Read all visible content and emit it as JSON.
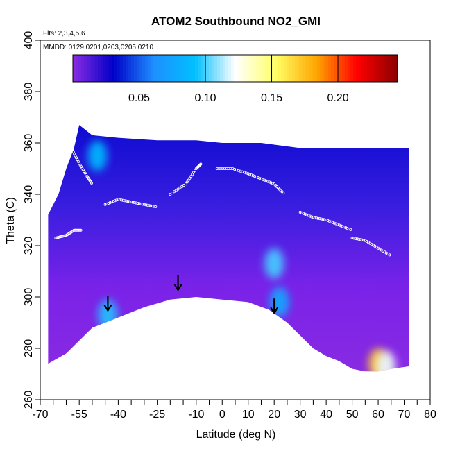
{
  "chart_data": {
    "type": "heatmap",
    "title": "ATOM2 Southbound NO2_GMI",
    "flights_label": "Flts: 2,3,4,5,6",
    "dates_label": "MMDD: 0129,0201,0203,0205,0210",
    "xlabel": "Latitude (deg N)",
    "ylabel": "Theta (C)",
    "xlim": [
      -70,
      80
    ],
    "ylim": [
      260,
      400
    ],
    "x_tick_labels": [
      "-70",
      "-55",
      "-40",
      "-25",
      "-10",
      "0",
      "10",
      "20",
      "30",
      "40",
      "50",
      "60",
      "70",
      "80"
    ],
    "x_tick_values": [
      -70,
      -55,
      -40,
      -25,
      -10,
      0,
      10,
      20,
      30,
      40,
      50,
      60,
      70,
      80
    ],
    "x_minor_ticks": [
      -65,
      -60,
      -50,
      -45,
      -35,
      -30,
      -20,
      -15,
      -5,
      5,
      15,
      25,
      35,
      45,
      55,
      65,
      75
    ],
    "y_tick_labels": [
      "260",
      "280",
      "300",
      "320",
      "340",
      "360",
      "380",
      "400"
    ],
    "y_tick_values": [
      260,
      280,
      300,
      320,
      340,
      360,
      380,
      400
    ],
    "colorbar": {
      "range": [
        0.0,
        0.245
      ],
      "tick_values": [
        0.05,
        0.1,
        0.15,
        0.2
      ],
      "tick_labels": [
        "0.05",
        "0.10",
        "0.15",
        "0.20"
      ],
      "colors": [
        "#8a2be2",
        "#0000c8",
        "#1e90ff",
        "#00bfff",
        "#ffffff",
        "#ffff66",
        "#ffa500",
        "#ff0000",
        "#8b0000"
      ]
    },
    "field": {
      "lat_range": [
        -67,
        72
      ],
      "domain_top": [
        [
          -67,
          332
        ],
        [
          -63,
          340
        ],
        [
          -60,
          350
        ],
        [
          -57,
          358
        ],
        [
          -55,
          367
        ],
        [
          -50,
          363
        ],
        [
          -40,
          362
        ],
        [
          -25,
          361
        ],
        [
          -10,
          361
        ],
        [
          0,
          360
        ],
        [
          15,
          360
        ],
        [
          30,
          358
        ],
        [
          40,
          358
        ],
        [
          50,
          358
        ],
        [
          60,
          358
        ],
        [
          65,
          358
        ],
        [
          72,
          358
        ]
      ],
      "domain_bottom": [
        [
          -67,
          274
        ],
        [
          -60,
          278
        ],
        [
          -55,
          283
        ],
        [
          -50,
          288
        ],
        [
          -45,
          290
        ],
        [
          -40,
          292
        ],
        [
          -30,
          296
        ],
        [
          -20,
          299
        ],
        [
          -10,
          300
        ],
        [
          0,
          299
        ],
        [
          10,
          298
        ],
        [
          18,
          295
        ],
        [
          25,
          290
        ],
        [
          30,
          285
        ],
        [
          35,
          280
        ],
        [
          40,
          277
        ],
        [
          45,
          275
        ],
        [
          50,
          272
        ],
        [
          55,
          271
        ],
        [
          60,
          271
        ],
        [
          65,
          272
        ],
        [
          72,
          273
        ]
      ],
      "features": [
        {
          "lat": -48,
          "theta": 355,
          "value": 0.09
        },
        {
          "lat": -44,
          "theta": 293,
          "value": 0.095
        },
        {
          "lat": 20,
          "theta": 313,
          "value": 0.1
        },
        {
          "lat": 22,
          "theta": 298,
          "value": 0.08
        },
        {
          "lat": 60,
          "theta": 274,
          "value": 0.17
        },
        {
          "lat": 63,
          "theta": 273,
          "value": 0.12
        }
      ]
    },
    "profiles": [
      {
        "lat": [
          -64,
          -60,
          -57,
          -54
        ],
        "theta": [
          323,
          324,
          326,
          326
        ]
      },
      {
        "lat": [
          -58,
          -55,
          -52,
          -50
        ],
        "theta": [
          358,
          352,
          347,
          344
        ]
      },
      {
        "lat": [
          -45,
          -40,
          -35,
          -30,
          -25
        ],
        "theta": [
          336,
          338,
          337,
          336,
          335
        ]
      },
      {
        "lat": [
          -20,
          -14,
          -10,
          -8
        ],
        "theta": [
          340,
          344,
          350,
          352
        ]
      },
      {
        "lat": [
          -2,
          4,
          10,
          15,
          20,
          24
        ],
        "theta": [
          350,
          350,
          348,
          346,
          344,
          340
        ]
      },
      {
        "lat": [
          30,
          35,
          40,
          45,
          50
        ],
        "theta": [
          333,
          331,
          330,
          328,
          326
        ]
      },
      {
        "lat": [
          50,
          55,
          60,
          65
        ],
        "theta": [
          323,
          322,
          319,
          316
        ]
      }
    ],
    "arrows": [
      {
        "lat": -44,
        "theta": 295
      },
      {
        "lat": -17,
        "theta": 303
      },
      {
        "lat": 20,
        "theta": 294
      }
    ]
  }
}
